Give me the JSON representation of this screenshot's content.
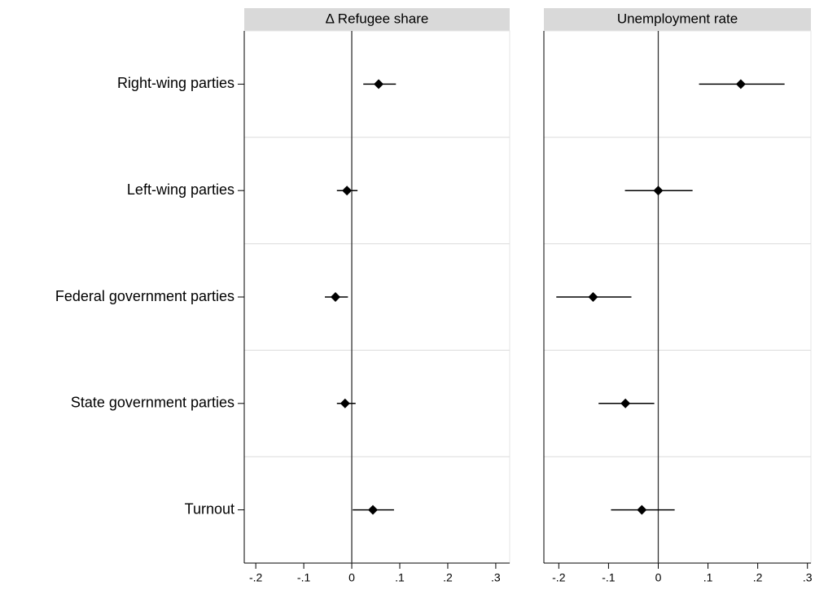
{
  "chart_data": {
    "type": "coefplot",
    "categories": [
      "Right-wing parties",
      "Left-wing parties",
      "Federal government parties",
      "State government parties",
      "Turnout"
    ],
    "color": "#000000",
    "refline": 0,
    "panels": [
      {
        "title": "Δ Refugee share",
        "values": [
          0.056,
          -0.01,
          -0.034,
          -0.014,
          0.044
        ],
        "ci_low": [
          0.024,
          -0.031,
          -0.056,
          -0.031,
          0.002
        ],
        "ci_high": [
          0.092,
          0.012,
          -0.008,
          0.008,
          0.088
        ],
        "xlim": [
          -0.224,
          0.329
        ],
        "xticks": [
          {
            "value": -0.2,
            "label": "-.2"
          },
          {
            "value": -0.1,
            "label": "-.1"
          },
          0,
          {
            "value": 0.1,
            "label": ".1"
          },
          {
            "value": 0.2,
            "label": ".2"
          },
          {
            "value": 0.3,
            "label": ".3"
          }
        ]
      },
      {
        "title": "Unemployment rate",
        "values": [
          0.166,
          0.0,
          -0.131,
          -0.066,
          -0.033
        ],
        "ci_low": [
          0.082,
          -0.067,
          -0.205,
          -0.12,
          -0.095
        ],
        "ci_high": [
          0.254,
          0.069,
          -0.054,
          -0.008,
          0.033
        ],
        "xlim": [
          -0.23,
          0.307
        ],
        "xticks": [
          {
            "value": -0.2,
            "label": "-.2"
          },
          {
            "value": -0.1,
            "label": "-.1"
          },
          0,
          {
            "value": 0.1,
            "label": ".1"
          },
          {
            "value": 0.2,
            "label": ".2"
          },
          {
            "value": 0.3,
            "label": ".3"
          }
        ]
      }
    ]
  }
}
